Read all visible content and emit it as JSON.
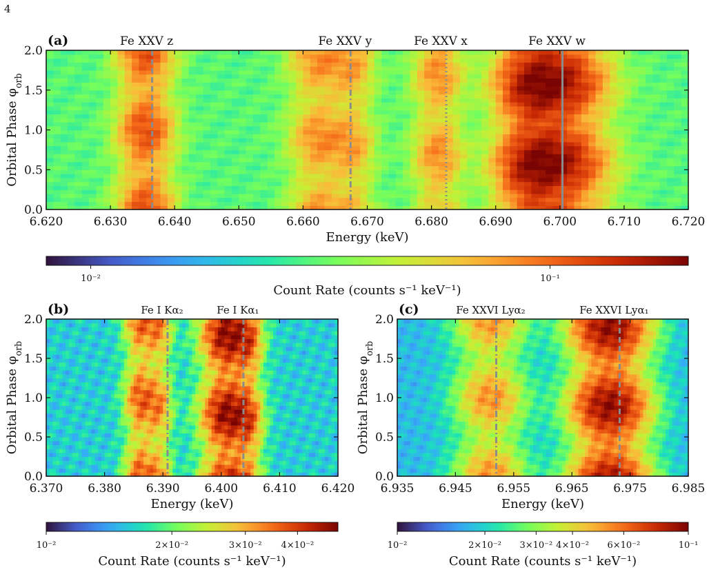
{
  "page_number": "4",
  "colormap_stops": [
    "#30123b",
    "#4662d7",
    "#36aaf9",
    "#1ae4b6",
    "#72fe5e",
    "#c8ef34",
    "#faba39",
    "#f66b19",
    "#ca2a04",
    "#7a0403"
  ],
  "marker_color": "#8c8c8c",
  "chart_data": [
    {
      "type": "heatmap",
      "panel_label": "(a)",
      "xlabel": "Energy (keV)",
      "ylabel": "Orbital Phase φ_orb",
      "xlim": [
        6.62,
        6.72
      ],
      "ylim": [
        0.0,
        2.0
      ],
      "xticks": [
        "6.620",
        "6.630",
        "6.640",
        "6.650",
        "6.660",
        "6.670",
        "6.680",
        "6.690",
        "6.700",
        "6.710",
        "6.720"
      ],
      "yticks": [
        "0.0",
        "0.5",
        "1.0",
        "1.5",
        "2.0"
      ],
      "lines": [
        {
          "label": "Fe XXV z",
          "energy": 6.6365,
          "style": "dashed"
        },
        {
          "label": "Fe XXV y",
          "energy": 6.6674,
          "style": "dashdot"
        },
        {
          "label": "Fe XXV x",
          "energy": 6.6823,
          "style": "dotted"
        },
        {
          "label": "Fe XXV w",
          "energy": 6.7004,
          "style": "solid"
        }
      ],
      "peaks": [
        {
          "energy": 6.6355,
          "width": 0.0028,
          "amp": 0.085
        },
        {
          "energy": 6.6625,
          "width": 0.003,
          "amp": 0.055
        },
        {
          "energy": 6.668,
          "width": 0.0022,
          "amp": 0.04
        },
        {
          "energy": 6.681,
          "width": 0.0025,
          "amp": 0.055
        },
        {
          "energy": 6.699,
          "width": 0.005,
          "amp": 0.15
        },
        {
          "energy": 6.695,
          "width": 0.003,
          "amp": 0.05
        }
      ],
      "background": 0.03,
      "colorbar": {
        "scale": "log",
        "vmin": 0.008,
        "vmax": 0.2,
        "label": "Count Rate (counts s⁻¹ keV⁻¹)",
        "ticks": [
          {
            "value": 0.01,
            "label": "10⁻²"
          },
          {
            "value": 0.1,
            "label": "10⁻¹"
          }
        ]
      }
    },
    {
      "type": "heatmap",
      "panel_label": "(b)",
      "xlabel": "Energy (keV)",
      "ylabel": "Orbital Phase φ_orb",
      "xlim": [
        6.37,
        6.42
      ],
      "ylim": [
        0.0,
        2.0
      ],
      "xticks": [
        "6.370",
        "6.380",
        "6.390",
        "6.400",
        "6.410",
        "6.420"
      ],
      "yticks": [
        "0.0",
        "0.5",
        "1.0",
        "1.5",
        "2.0"
      ],
      "lines": [
        {
          "label": "Fe I Kα₂",
          "energy": 6.3908,
          "style": "dashdot"
        },
        {
          "label": "Fe I Kα₁",
          "energy": 6.4038,
          "style": "dashed"
        }
      ],
      "peaks": [
        {
          "energy": 6.386,
          "width": 0.0018,
          "amp": 0.02
        },
        {
          "energy": 6.3895,
          "width": 0.0015,
          "amp": 0.015
        },
        {
          "energy": 6.401,
          "width": 0.003,
          "amp": 0.032
        },
        {
          "energy": 6.405,
          "width": 0.0015,
          "amp": 0.012
        }
      ],
      "background": 0.016,
      "colorbar": {
        "scale": "log",
        "vmin": 0.01,
        "vmax": 0.05,
        "label": "Count Rate (counts s⁻¹ keV⁻¹)",
        "ticks": [
          {
            "value": 0.01,
            "label": "10⁻²"
          },
          {
            "value": 0.02,
            "label": "2×10⁻²"
          },
          {
            "value": 0.03,
            "label": "3×10⁻²"
          },
          {
            "value": 0.04,
            "label": "4×10⁻²"
          }
        ]
      }
    },
    {
      "type": "heatmap",
      "panel_label": "(c)",
      "xlabel": "Energy (keV)",
      "ylabel": "Orbital Phase φ_orb",
      "xlim": [
        6.935,
        6.985
      ],
      "ylim": [
        0.0,
        2.0
      ],
      "xticks": [
        "6.935",
        "6.945",
        "6.955",
        "6.965",
        "6.975",
        "6.985"
      ],
      "yticks": [
        "0.0",
        "0.5",
        "1.0",
        "1.5",
        "2.0"
      ],
      "lines": [
        {
          "label": "Fe XXVI Lyα₂",
          "energy": 6.952,
          "style": "dashdot"
        },
        {
          "label": "Fe XXVI Lyα₁",
          "energy": 6.9732,
          "style": "dashed"
        }
      ],
      "peaks": [
        {
          "energy": 6.951,
          "width": 0.004,
          "amp": 0.035
        },
        {
          "energy": 6.9715,
          "width": 0.0045,
          "amp": 0.075
        }
      ],
      "background": 0.018,
      "colorbar": {
        "scale": "log",
        "vmin": 0.01,
        "vmax": 0.1,
        "label": "Count Rate (counts s⁻¹ keV⁻¹)",
        "ticks": [
          {
            "value": 0.01,
            "label": "10⁻²"
          },
          {
            "value": 0.02,
            "label": "2×10⁻²"
          },
          {
            "value": 0.03,
            "label": "3×10⁻²"
          },
          {
            "value": 0.04,
            "label": "4×10⁻²"
          },
          {
            "value": 0.06,
            "label": "6×10⁻²"
          },
          {
            "value": 0.1,
            "label": "10⁻¹"
          }
        ]
      }
    }
  ]
}
